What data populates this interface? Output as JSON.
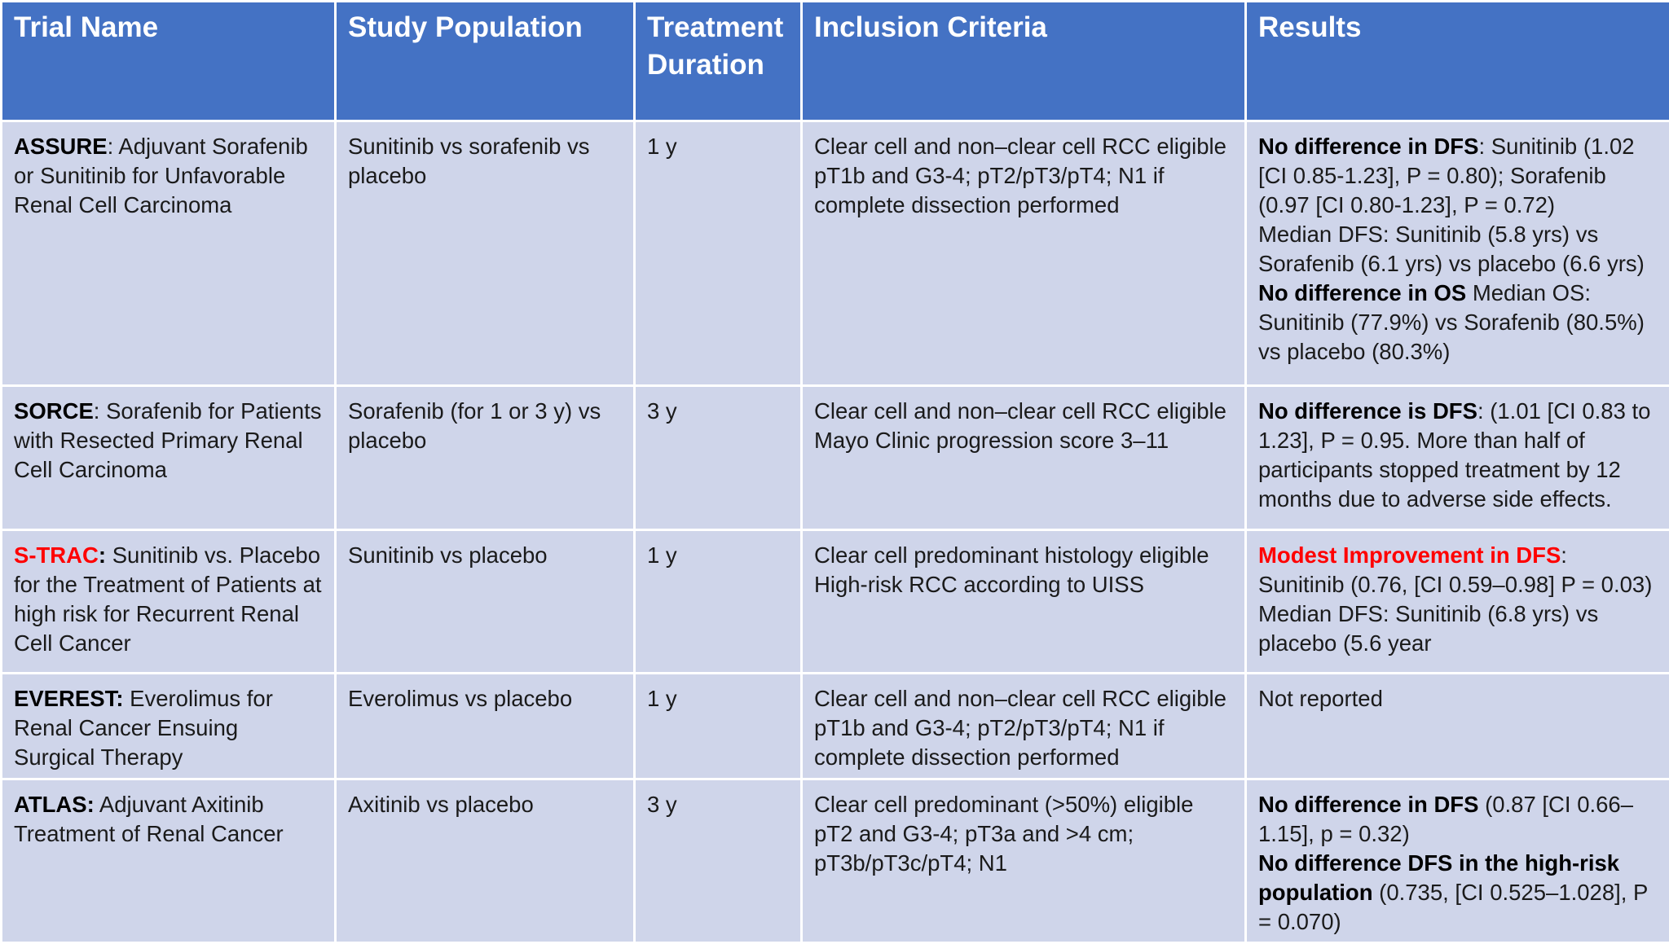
{
  "table": {
    "headers": [
      "Trial Name",
      "Study Population",
      "Treatment Duration",
      "Inclusion Criteria",
      "Results"
    ],
    "rows": [
      {
        "trial_acronym": "ASSURE",
        "trial_title": ": Adjuvant Sorafenib or Sunitinib for Unfavorable Renal Cell Carcinoma",
        "population": "Sunitinib vs sorafenib vs placebo",
        "duration": "1 y",
        "criteria": "Clear cell and non–clear cell RCC eligible pT1b and G3-4; pT2/pT3/pT4; N1 if complete dissection performed",
        "results": [
          {
            "bold": "No difference in DFS",
            "text": ": Sunitinib (1.02 [CI 0.85-1.23], P = 0.80); Sorafenib (0.97 [CI 0.80-1.23], P = 0.72)"
          },
          {
            "bold": "",
            "text": "Median DFS: Sunitinib (5.8 yrs) vs Sorafenib (6.1 yrs) vs placebo (6.6 yrs)"
          },
          {
            "bold": "No difference in OS",
            "text": " Median OS: Sunitinib (77.9%) vs Sorafenib (80.5%) vs placebo (80.3%)"
          }
        ]
      },
      {
        "trial_acronym": "SORCE",
        "trial_title": ": Sorafenib for Patients with Resected Primary Renal Cell Carcinoma",
        "population": "Sorafenib (for 1 or 3 y) vs placebo",
        "duration": "3 y",
        "criteria": "Clear cell and non–clear cell RCC eligible Mayo Clinic progression score 3–11",
        "results": [
          {
            "bold": "No difference is DFS",
            "text": ": (1.01 [CI 0.83 to 1.23], P = 0.95. More than half of participants stopped treatment by 12 months due to adverse side effects."
          }
        ]
      },
      {
        "trial_acronym": "S-TRAC",
        "trial_acronym_colon": ":",
        "trial_title": " Sunitinib vs. Placebo for the Treatment of Patients at high risk for Recurrent Renal Cell Cancer",
        "population": "Sunitinib vs placebo",
        "duration": "1 y",
        "criteria": "Clear cell predominant histology eligible High-risk RCC according to UISS",
        "results": [
          {
            "bold": "Modest Improvement in DFS",
            "text": ": Sunitinib (0.76, [CI 0.59–0.98] P = 0.03) Median DFS: Sunitinib (6.8 yrs) vs placebo (5.6 year"
          }
        ]
      },
      {
        "trial_acronym": "EVEREST:",
        "trial_title": " Everolimus for Renal Cancer Ensuing Surgical Therapy",
        "population": "Everolimus vs placebo",
        "duration": "1 y",
        "criteria": "Clear cell and non–clear cell RCC eligible pT1b and G3-4; pT2/pT3/pT4; N1 if complete dissection performed",
        "results": [
          {
            "bold": "",
            "text": "Not reported"
          }
        ]
      },
      {
        "trial_acronym": "ATLAS:",
        "trial_title": " Adjuvant Axitinib Treatment of Renal Cancer",
        "population": "Axitinib vs placebo",
        "duration": "3 y",
        "criteria": "Clear cell predominant (>50%) eligible pT2 and G3-4; pT3a and >4 cm; pT3b/pT3c/pT4; N1",
        "results": [
          {
            "bold": "No difference in DFS",
            "text": " (0.87 [CI 0.66–1.15], p = 0.32)"
          },
          {
            "bold": "No difference DFS in the high-risk population",
            "text": " (0.735, [CI 0.525–1.028], P = 0.070)"
          }
        ]
      }
    ]
  },
  "colors": {
    "header_background": "#4472c4",
    "header_text": "#ffffff",
    "row_background": "#cfd5ea",
    "highlight_red": "#ff0000"
  }
}
